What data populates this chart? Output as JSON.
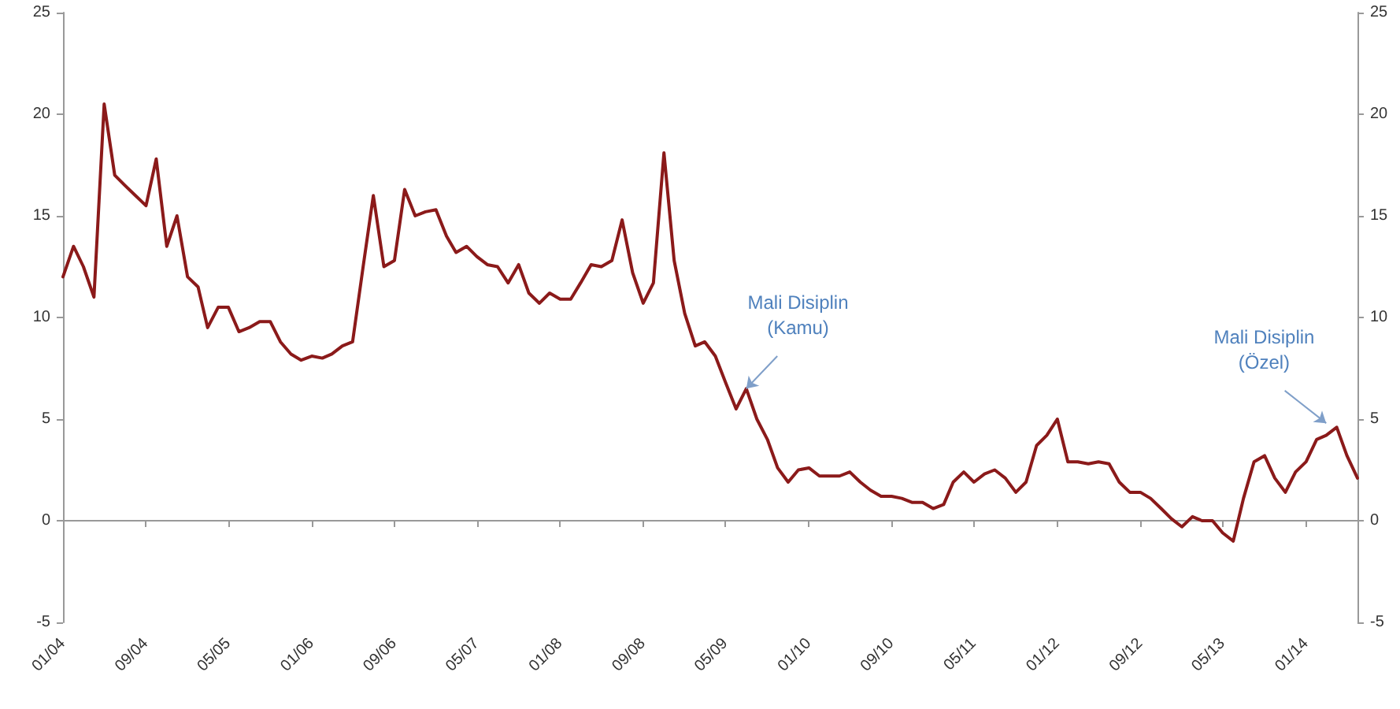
{
  "chart_data": {
    "type": "line",
    "x": [
      "2004-01",
      "2004-02",
      "2004-03",
      "2004-04",
      "2004-05",
      "2004-06",
      "2004-07",
      "2004-08",
      "2004-09",
      "2004-10",
      "2004-11",
      "2004-12",
      "2005-01",
      "2005-02",
      "2005-03",
      "2005-04",
      "2005-05",
      "2005-06",
      "2005-07",
      "2005-08",
      "2005-09",
      "2005-10",
      "2005-11",
      "2005-12",
      "2006-01",
      "2006-02",
      "2006-03",
      "2006-04",
      "2006-05",
      "2006-06",
      "2006-07",
      "2006-08",
      "2006-09",
      "2006-10",
      "2006-11",
      "2006-12",
      "2007-01",
      "2007-02",
      "2007-03",
      "2007-04",
      "2007-05",
      "2007-06",
      "2007-07",
      "2007-08",
      "2007-09",
      "2007-10",
      "2007-11",
      "2007-12",
      "2008-01",
      "2008-02",
      "2008-03",
      "2008-04",
      "2008-05",
      "2008-06",
      "2008-07",
      "2008-08",
      "2008-09",
      "2008-10",
      "2008-11",
      "2008-12",
      "2009-01",
      "2009-02",
      "2009-03",
      "2009-04",
      "2009-05",
      "2009-06",
      "2009-07",
      "2009-08",
      "2009-09",
      "2009-10",
      "2009-11",
      "2009-12",
      "2010-01",
      "2010-02",
      "2010-03",
      "2010-04",
      "2010-05",
      "2010-06",
      "2010-07",
      "2010-08",
      "2010-09",
      "2010-10",
      "2010-11",
      "2010-12",
      "2011-01",
      "2011-02",
      "2011-03",
      "2011-04",
      "2011-05",
      "2011-06",
      "2011-07",
      "2011-08",
      "2011-09",
      "2011-10",
      "2011-11",
      "2011-12",
      "2012-01",
      "2012-02",
      "2012-03",
      "2012-04",
      "2012-05",
      "2012-06",
      "2012-07",
      "2012-08",
      "2012-09",
      "2012-10",
      "2012-11",
      "2012-12",
      "2013-01",
      "2013-02",
      "2013-03",
      "2013-04",
      "2013-05",
      "2013-06",
      "2013-07",
      "2013-08",
      "2013-09",
      "2013-10",
      "2013-11",
      "2013-12",
      "2014-01",
      "2014-02",
      "2014-03",
      "2014-04",
      "2014-05",
      "2014-06"
    ],
    "series": [
      {
        "color": "#8b1a1a",
        "values": [
          12,
          13.5,
          12.5,
          11,
          20.5,
          17,
          16.5,
          16,
          15.5,
          17.8,
          13.5,
          15,
          12,
          11.5,
          9.5,
          10.5,
          10.5,
          9.3,
          9.5,
          9.8,
          9.8,
          8.8,
          8.2,
          7.9,
          8.1,
          8,
          8.2,
          8.6,
          8.8,
          12.5,
          16,
          12.5,
          12.8,
          16.3,
          15,
          15.2,
          15.3,
          14,
          13.2,
          13.5,
          13,
          12.6,
          12.5,
          11.7,
          12.6,
          11.2,
          10.7,
          11.2,
          10.9,
          10.9,
          11.7,
          12.6,
          12.5,
          12.8,
          14.8,
          12.2,
          10.7,
          11.7,
          18.1,
          12.8,
          10.2,
          8.6,
          8.8,
          8.1,
          6.8,
          5.5,
          6.5,
          5,
          4,
          2.6,
          1.9,
          2.5,
          2.6,
          2.2,
          2.2,
          2.2,
          2.4,
          1.9,
          1.5,
          1.2,
          1.2,
          1.1,
          0.9,
          0.9,
          0.6,
          0.8,
          1.9,
          2.4,
          1.9,
          2.3,
          2.5,
          2.1,
          1.4,
          1.9,
          3.7,
          4.2,
          5,
          2.9,
          2.9,
          2.8,
          2.9,
          2.8,
          1.9,
          1.4,
          1.4,
          1.1,
          0.6,
          0.1,
          -0.3,
          0.2,
          0,
          0,
          -0.6,
          -1,
          1.1,
          2.9,
          3.2,
          2.1,
          1.4,
          2.4,
          2.9,
          4,
          4.2,
          4.6,
          3.2,
          2.1
        ]
      }
    ],
    "xlim": [
      "2004-01",
      "2014-06"
    ],
    "xticks": [
      {
        "value": "2004-01",
        "label": "01/04"
      },
      {
        "value": "2004-09",
        "label": "09/04"
      },
      {
        "value": "2005-05",
        "label": "05/05"
      },
      {
        "value": "2006-01",
        "label": "01/06"
      },
      {
        "value": "2006-09",
        "label": "09/06"
      },
      {
        "value": "2007-05",
        "label": "05/07"
      },
      {
        "value": "2008-01",
        "label": "01/08"
      },
      {
        "value": "2008-09",
        "label": "09/08"
      },
      {
        "value": "2009-05",
        "label": "05/09"
      },
      {
        "value": "2010-01",
        "label": "01/10"
      },
      {
        "value": "2010-09",
        "label": "09/10"
      },
      {
        "value": "2011-05",
        "label": "05/11"
      },
      {
        "value": "2012-01",
        "label": "01/12"
      },
      {
        "value": "2012-09",
        "label": "09/12"
      },
      {
        "value": "2013-05",
        "label": "05/13"
      },
      {
        "value": "2014-01",
        "label": "01/14"
      }
    ],
    "ylim": [
      -5,
      25
    ],
    "yticks": [
      -5,
      0,
      5,
      10,
      15,
      20,
      25
    ],
    "y2lim": [
      -5,
      25
    ],
    "y2ticks": [
      -5,
      0,
      5,
      10,
      15,
      20,
      25
    ],
    "annotations": [
      {
        "text": "Mali Disiplin\n(Kamu)",
        "x": "2009-07",
        "y": 6.5
      },
      {
        "text": "Mali Disiplin\n(Özel)",
        "x": "2014-03",
        "y": 4.8
      }
    ],
    "marker": "none",
    "line_style": "solid"
  }
}
